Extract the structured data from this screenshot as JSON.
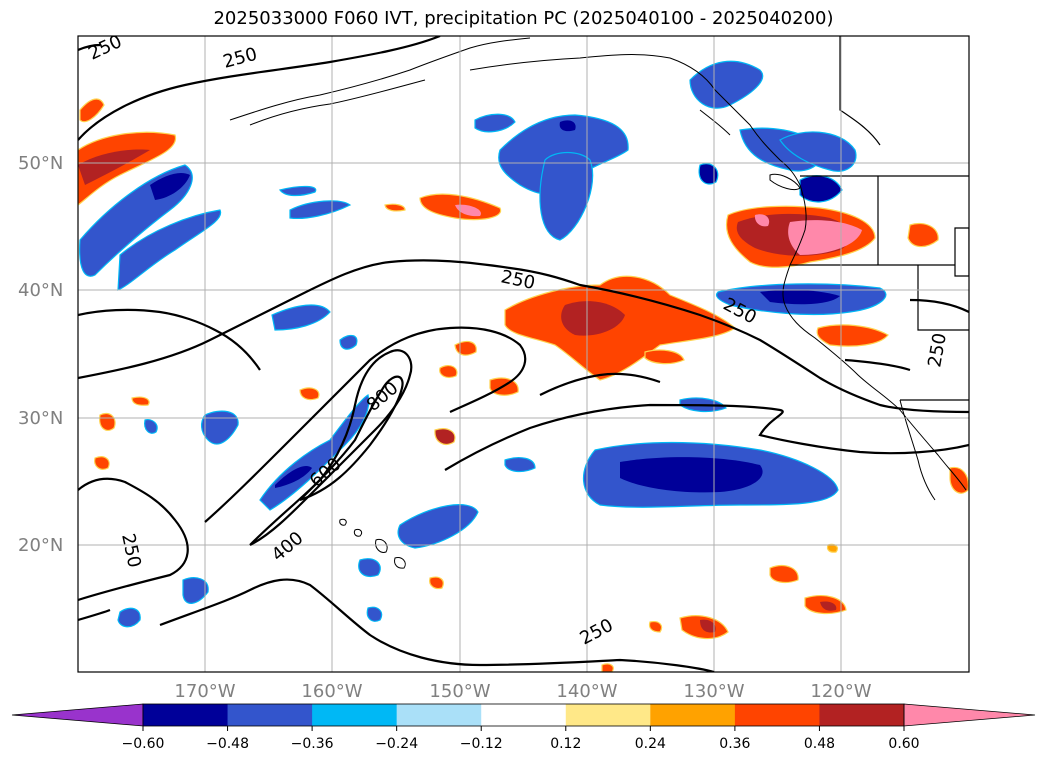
{
  "title": "2025033000 F060 IVT, precipitation PC (2025040100 - 2025040200)",
  "map": {
    "lat_labels": [
      "50°N",
      "40°N",
      "30°N",
      "20°N"
    ],
    "lon_labels": [
      "170°W",
      "160°W",
      "150°W",
      "140°W",
      "130°W",
      "120°W"
    ],
    "ivt_contour_labels": [
      "250",
      "250",
      "250",
      "250",
      "250",
      "250",
      "400",
      "600",
      "800"
    ],
    "gridlines": true
  },
  "colorbar": {
    "ticks": [
      "−0.60",
      "−0.48",
      "−0.36",
      "−0.24",
      "−0.12",
      "0.12",
      "0.24",
      "0.36",
      "0.48",
      "0.60"
    ],
    "colors": [
      "#9933cc",
      "#000099",
      "#3355cc",
      "#00b8f5",
      "#aae0f8",
      "#ffffff",
      "#ffe888",
      "#ffa200",
      "#ff4400",
      "#b22222",
      "#ff88aa"
    ]
  }
}
